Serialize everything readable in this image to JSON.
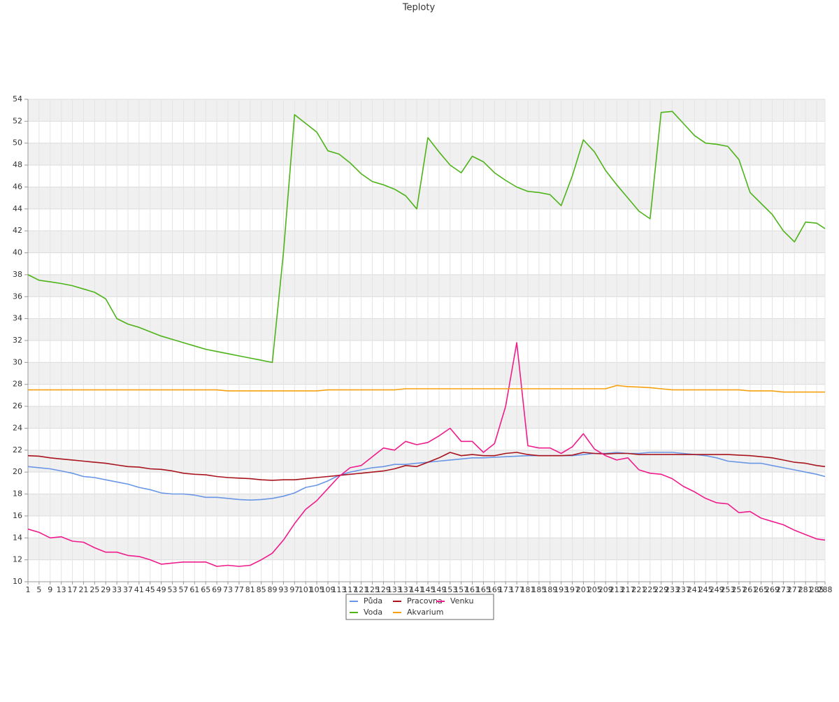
{
  "chart_data": {
    "type": "line",
    "title": "Teploty",
    "x": [
      1,
      5,
      9,
      13,
      17,
      21,
      25,
      29,
      33,
      37,
      41,
      45,
      49,
      53,
      57,
      61,
      65,
      69,
      73,
      77,
      81,
      85,
      89,
      93,
      97,
      101,
      105,
      109,
      113,
      117,
      121,
      125,
      129,
      133,
      137,
      141,
      145,
      149,
      153,
      157,
      161,
      165,
      169,
      173,
      177,
      181,
      185,
      189,
      193,
      197,
      201,
      205,
      209,
      213,
      217,
      221,
      225,
      229,
      233,
      237,
      241,
      245,
      249,
      253,
      257,
      261,
      265,
      269,
      273,
      277,
      281,
      285,
      288
    ],
    "xlim": [
      1,
      288
    ],
    "xticks": [
      1,
      5,
      9,
      13,
      17,
      21,
      25,
      29,
      33,
      37,
      41,
      45,
      49,
      53,
      57,
      61,
      65,
      69,
      73,
      77,
      81,
      85,
      89,
      93,
      97,
      101,
      105,
      109,
      113,
      117,
      121,
      125,
      129,
      133,
      137,
      141,
      145,
      149,
      153,
      157,
      161,
      165,
      169,
      173,
      177,
      181,
      185,
      189,
      193,
      197,
      201,
      205,
      209,
      213,
      217,
      221,
      225,
      229,
      233,
      237,
      241,
      245,
      249,
      253,
      257,
      261,
      265,
      269,
      273,
      277,
      281,
      285,
      288
    ],
    "ylim": [
      10,
      54
    ],
    "yticks": [
      10,
      12,
      14,
      16,
      18,
      20,
      22,
      24,
      26,
      28,
      30,
      32,
      34,
      36,
      38,
      40,
      42,
      44,
      46,
      48,
      50,
      52,
      54
    ],
    "grid": true,
    "series": [
      {
        "name": "Půda",
        "color": "#6a96e6",
        "values": [
          20.5,
          20.4,
          20.3,
          20.1,
          19.9,
          19.6,
          19.5,
          19.3,
          19.1,
          18.9,
          18.6,
          18.4,
          18.1,
          18.0,
          18.0,
          17.9,
          17.7,
          17.7,
          17.6,
          17.5,
          17.45,
          17.5,
          17.6,
          17.8,
          18.1,
          18.6,
          18.8,
          19.2,
          19.7,
          20.0,
          20.2,
          20.4,
          20.5,
          20.7,
          20.7,
          20.8,
          20.9,
          21.0,
          21.1,
          21.2,
          21.3,
          21.3,
          21.35,
          21.4,
          21.45,
          21.5,
          21.5,
          21.5,
          21.5,
          21.5,
          21.6,
          21.7,
          21.7,
          21.8,
          21.7,
          21.7,
          21.8,
          21.8,
          21.8,
          21.7,
          21.6,
          21.5,
          21.3,
          21.0,
          20.9,
          20.8,
          20.8,
          20.6,
          20.4,
          20.2,
          20.0,
          19.8,
          19.6
        ]
      },
      {
        "name": "Pracovna",
        "color": "#a8141e",
        "values": [
          21.5,
          21.45,
          21.3,
          21.2,
          21.1,
          21.0,
          20.9,
          20.8,
          20.65,
          20.5,
          20.45,
          20.3,
          20.25,
          20.1,
          19.9,
          19.8,
          19.75,
          19.6,
          19.5,
          19.45,
          19.4,
          19.3,
          19.25,
          19.3,
          19.3,
          19.4,
          19.5,
          19.6,
          19.7,
          19.8,
          19.9,
          20.0,
          20.1,
          20.3,
          20.6,
          20.5,
          20.9,
          21.3,
          21.8,
          21.5,
          21.6,
          21.5,
          21.5,
          21.7,
          21.8,
          21.6,
          21.5,
          21.5,
          21.5,
          21.55,
          21.8,
          21.7,
          21.65,
          21.7,
          21.7,
          21.6,
          21.6,
          21.6,
          21.6,
          21.6,
          21.6,
          21.6,
          21.6,
          21.6,
          21.55,
          21.5,
          21.4,
          21.3,
          21.1,
          20.9,
          20.8,
          20.6,
          20.5
        ]
      },
      {
        "name": "Venku",
        "color": "#ef1c8c",
        "values": [
          14.8,
          14.5,
          14.0,
          14.1,
          13.7,
          13.6,
          13.1,
          12.7,
          12.7,
          12.4,
          12.3,
          12.0,
          11.6,
          11.7,
          11.8,
          11.8,
          11.8,
          11.4,
          11.5,
          11.4,
          11.5,
          12.0,
          12.6,
          13.8,
          15.3,
          16.6,
          17.4,
          18.5,
          19.6,
          20.4,
          20.6,
          21.4,
          22.2,
          22.0,
          22.8,
          22.5,
          22.7,
          23.3,
          24.0,
          22.8,
          22.8,
          21.8,
          22.6,
          26.0,
          31.8,
          22.4,
          22.2,
          22.2,
          21.7,
          22.3,
          23.5,
          22.1,
          21.5,
          21.1,
          21.3,
          20.2,
          19.9,
          19.8,
          19.4,
          18.7,
          18.2,
          17.6,
          17.2,
          17.1,
          16.3,
          16.4,
          15.8,
          15.5,
          15.2,
          14.7,
          14.3,
          13.9,
          13.8
        ]
      },
      {
        "name": "Voda",
        "color": "#4db318",
        "values": [
          38.0,
          37.5,
          37.35,
          37.2,
          37.0,
          36.7,
          36.4,
          35.8,
          34.0,
          33.5,
          33.2,
          32.8,
          32.4,
          32.1,
          31.8,
          31.5,
          31.2,
          31.0,
          30.8,
          30.6,
          30.4,
          30.2,
          30.0,
          40.0,
          52.6,
          51.8,
          51.0,
          49.3,
          49.0,
          48.2,
          47.2,
          46.5,
          46.2,
          45.8,
          45.2,
          44.0,
          50.5,
          49.2,
          48.0,
          47.3,
          48.8,
          48.3,
          47.3,
          46.6,
          46.0,
          45.6,
          45.5,
          45.3,
          44.3,
          47.0,
          50.3,
          49.2,
          47.5,
          46.2,
          45.0,
          43.8,
          43.1,
          52.8,
          52.9,
          51.8,
          50.7,
          50.0,
          49.9,
          49.7,
          48.5,
          45.5,
          44.5,
          43.5,
          42.0,
          41.0,
          42.8,
          42.7,
          42.2
        ]
      },
      {
        "name": "Akvarium",
        "color": "#f5a00f",
        "values": [
          27.5,
          27.5,
          27.5,
          27.5,
          27.5,
          27.5,
          27.5,
          27.5,
          27.5,
          27.5,
          27.5,
          27.5,
          27.5,
          27.5,
          27.5,
          27.5,
          27.5,
          27.5,
          27.4,
          27.4,
          27.4,
          27.4,
          27.4,
          27.4,
          27.4,
          27.4,
          27.4,
          27.5,
          27.5,
          27.5,
          27.5,
          27.5,
          27.5,
          27.5,
          27.6,
          27.6,
          27.6,
          27.6,
          27.6,
          27.6,
          27.6,
          27.6,
          27.6,
          27.6,
          27.6,
          27.6,
          27.6,
          27.6,
          27.6,
          27.6,
          27.6,
          27.6,
          27.6,
          27.9,
          27.8,
          27.75,
          27.7,
          27.6,
          27.5,
          27.5,
          27.5,
          27.5,
          27.5,
          27.5,
          27.5,
          27.4,
          27.4,
          27.4,
          27.3,
          27.3,
          27.3,
          27.3,
          27.3
        ]
      }
    ]
  }
}
